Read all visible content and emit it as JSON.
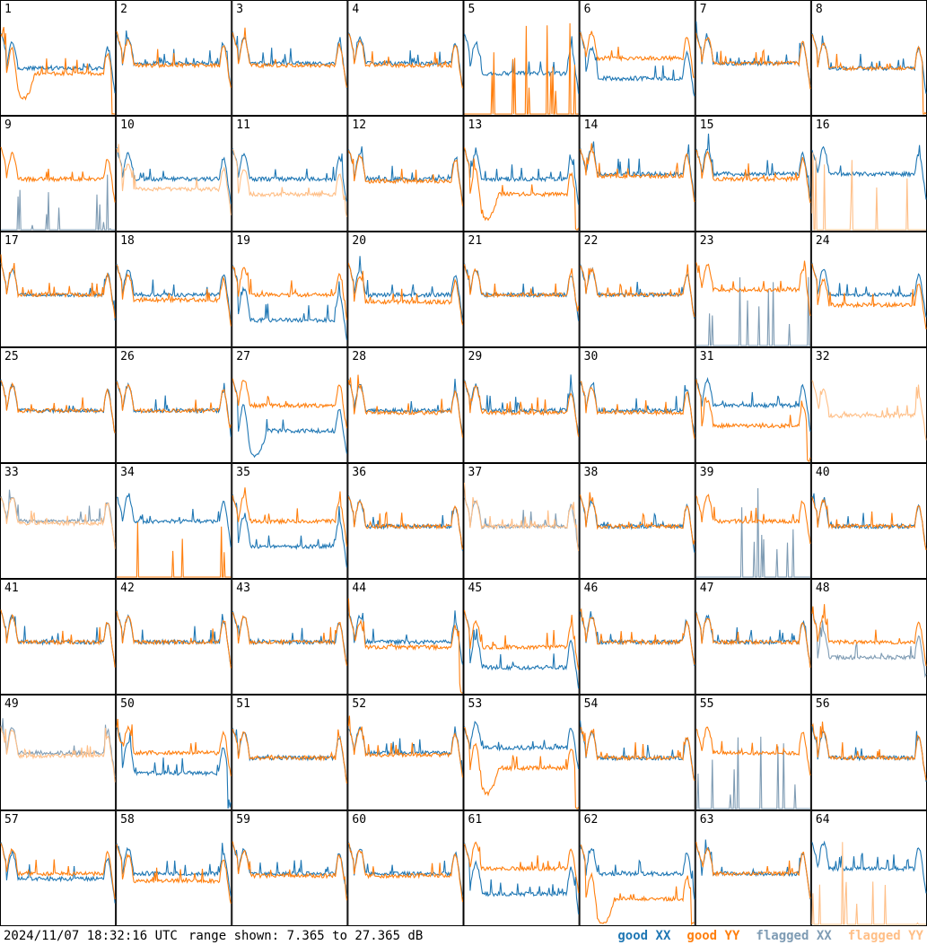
{
  "window": {
    "timestamp": "2024/11/07 18:32:16 UTC",
    "range_label": "range shown: 7.365 to 27.365 dB"
  },
  "legend": [
    {
      "label": "good XX",
      "color": "#1f77b4"
    },
    {
      "label": "good YY",
      "color": "#ff7f0e"
    },
    {
      "label": "flagged XX",
      "color": "#7f9cb4"
    },
    {
      "label": "flagged YY",
      "color": "#ffbf87"
    }
  ],
  "chart_data": {
    "type": "line",
    "grid": {
      "rows": 8,
      "cols": 8
    },
    "ylim": [
      7.365,
      27.365
    ],
    "units": "dB",
    "series_names": [
      "XX",
      "YY"
    ],
    "panels": [
      {
        "label": "1",
        "xx": {
          "shape": "normal",
          "level": 0.55
        },
        "yy": {
          "shape": "dip",
          "level": 0.6,
          "tail": "drop"
        }
      },
      {
        "label": "2",
        "xx": {
          "shape": "normal",
          "level": 0.5
        },
        "yy": {
          "shape": "normal",
          "level": 0.52
        }
      },
      {
        "label": "3",
        "xx": {
          "shape": "normal",
          "level": 0.5
        },
        "yy": {
          "shape": "normal",
          "level": 0.52
        }
      },
      {
        "label": "4",
        "xx": {
          "shape": "normal",
          "level": 0.5
        },
        "yy": {
          "shape": "normal",
          "level": 0.52
        }
      },
      {
        "label": "5",
        "xx": {
          "shape": "low",
          "level": 0.55
        },
        "yy": {
          "shape": "spikes",
          "level": 0.0
        }
      },
      {
        "label": "6",
        "xx": {
          "shape": "low",
          "level": 0.6
        },
        "yy": {
          "shape": "normal",
          "level": 0.45
        }
      },
      {
        "label": "7",
        "xx": {
          "shape": "normal",
          "level": 0.5
        },
        "yy": {
          "shape": "normal",
          "level": 0.5
        }
      },
      {
        "label": "8",
        "xx": {
          "shape": "normal",
          "level": 0.55
        },
        "yy": {
          "shape": "normal",
          "level": 0.55,
          "tail": "drop"
        }
      },
      {
        "label": "9",
        "xx": {
          "shape": "flag-spikes",
          "level": 0.0
        },
        "yy": {
          "shape": "normal",
          "level": 0.5
        }
      },
      {
        "label": "10",
        "xx": {
          "shape": "normal",
          "level": 0.5
        },
        "yy": {
          "shape": "flag-low",
          "level": 0.6
        }
      },
      {
        "label": "11",
        "xx": {
          "shape": "normal",
          "level": 0.5
        },
        "yy": {
          "shape": "flag-low",
          "level": 0.65
        }
      },
      {
        "label": "12",
        "xx": {
          "shape": "normal",
          "level": 0.5
        },
        "yy": {
          "shape": "normal",
          "level": 0.52
        }
      },
      {
        "label": "13",
        "xx": {
          "shape": "normal",
          "level": 0.5
        },
        "yy": {
          "shape": "dip",
          "level": 0.65,
          "tail": "drop"
        }
      },
      {
        "label": "14",
        "xx": {
          "shape": "normal",
          "level": 0.45
        },
        "yy": {
          "shape": "normal",
          "level": 0.47
        }
      },
      {
        "label": "15",
        "xx": {
          "shape": "normal",
          "level": 0.45
        },
        "yy": {
          "shape": "normal",
          "level": 0.5
        }
      },
      {
        "label": "16",
        "xx": {
          "shape": "normal",
          "level": 0.45
        },
        "yy": {
          "shape": "flag-spikes",
          "level": 0.0
        }
      },
      {
        "label": "17",
        "xx": {
          "shape": "normal",
          "level": 0.5
        },
        "yy": {
          "shape": "normal",
          "level": 0.5
        }
      },
      {
        "label": "18",
        "xx": {
          "shape": "normal",
          "level": 0.5
        },
        "yy": {
          "shape": "normal",
          "level": 0.55
        }
      },
      {
        "label": "19",
        "xx": {
          "shape": "low",
          "level": 0.7
        },
        "yy": {
          "shape": "normal",
          "level": 0.5
        }
      },
      {
        "label": "20",
        "xx": {
          "shape": "normal",
          "level": 0.5
        },
        "yy": {
          "shape": "normal",
          "level": 0.57
        }
      },
      {
        "label": "21",
        "xx": {
          "shape": "normal",
          "level": 0.5
        },
        "yy": {
          "shape": "normal",
          "level": 0.5
        }
      },
      {
        "label": "22",
        "xx": {
          "shape": "normal",
          "level": 0.5
        },
        "yy": {
          "shape": "normal",
          "level": 0.5
        }
      },
      {
        "label": "23",
        "xx": {
          "shape": "flag-spikes",
          "level": 0.0
        },
        "yy": {
          "shape": "normal",
          "level": 0.45
        }
      },
      {
        "label": "24",
        "xx": {
          "shape": "normal",
          "level": 0.5
        },
        "yy": {
          "shape": "normal",
          "level": 0.6
        }
      },
      {
        "label": "25",
        "xx": {
          "shape": "normal",
          "level": 0.5
        },
        "yy": {
          "shape": "normal",
          "level": 0.5
        }
      },
      {
        "label": "26",
        "xx": {
          "shape": "normal",
          "level": 0.5
        },
        "yy": {
          "shape": "normal",
          "level": 0.5
        }
      },
      {
        "label": "27",
        "xx": {
          "shape": "dip",
          "level": 0.7
        },
        "yy": {
          "shape": "normal",
          "level": 0.45
        }
      },
      {
        "label": "28",
        "xx": {
          "shape": "normal",
          "level": 0.5
        },
        "yy": {
          "shape": "normal",
          "level": 0.52
        }
      },
      {
        "label": "29",
        "xx": {
          "shape": "normal",
          "level": 0.5
        },
        "yy": {
          "shape": "normal",
          "level": 0.52
        }
      },
      {
        "label": "30",
        "xx": {
          "shape": "normal",
          "level": 0.5
        },
        "yy": {
          "shape": "normal",
          "level": 0.52
        }
      },
      {
        "label": "31",
        "xx": {
          "shape": "normal",
          "level": 0.45
        },
        "yy": {
          "shape": "normal",
          "level": 0.65,
          "tail": "drop"
        }
      },
      {
        "label": "32",
        "xx": {
          "shape": "none",
          "level": 0.0
        },
        "yy": {
          "shape": "flag-low",
          "level": 0.55
        }
      },
      {
        "label": "33",
        "xx": {
          "shape": "flag-normal",
          "level": 0.45
        },
        "yy": {
          "shape": "flag-normal",
          "level": 0.47
        }
      },
      {
        "label": "34",
        "xx": {
          "shape": "normal",
          "level": 0.45
        },
        "yy": {
          "shape": "spikes",
          "level": 0.0
        }
      },
      {
        "label": "35",
        "xx": {
          "shape": "low",
          "level": 0.65
        },
        "yy": {
          "shape": "normal",
          "level": 0.45
        }
      },
      {
        "label": "36",
        "xx": {
          "shape": "normal",
          "level": 0.5
        },
        "yy": {
          "shape": "normal",
          "level": 0.5
        }
      },
      {
        "label": "37",
        "xx": {
          "shape": "flag-normal",
          "level": 0.5
        },
        "yy": {
          "shape": "flag-normal",
          "level": 0.5
        }
      },
      {
        "label": "38",
        "xx": {
          "shape": "normal",
          "level": 0.5
        },
        "yy": {
          "shape": "normal",
          "level": 0.5
        }
      },
      {
        "label": "39",
        "xx": {
          "shape": "flag-spikes",
          "level": 0.0
        },
        "yy": {
          "shape": "normal",
          "level": 0.45
        }
      },
      {
        "label": "40",
        "xx": {
          "shape": "normal",
          "level": 0.5
        },
        "yy": {
          "shape": "normal",
          "level": 0.5
        }
      },
      {
        "label": "41",
        "xx": {
          "shape": "normal",
          "level": 0.5
        },
        "yy": {
          "shape": "normal",
          "level": 0.5
        }
      },
      {
        "label": "42",
        "xx": {
          "shape": "normal",
          "level": 0.5
        },
        "yy": {
          "shape": "normal",
          "level": 0.5
        }
      },
      {
        "label": "43",
        "xx": {
          "shape": "normal",
          "level": 0.5
        },
        "yy": {
          "shape": "normal",
          "level": 0.5
        }
      },
      {
        "label": "44",
        "xx": {
          "shape": "normal",
          "level": 0.5
        },
        "yy": {
          "shape": "normal",
          "level": 0.55,
          "tail": "drop"
        }
      },
      {
        "label": "45",
        "xx": {
          "shape": "low",
          "level": 0.7
        },
        "yy": {
          "shape": "normal",
          "level": 0.55
        }
      },
      {
        "label": "46",
        "xx": {
          "shape": "normal",
          "level": 0.5
        },
        "yy": {
          "shape": "normal",
          "level": 0.5
        }
      },
      {
        "label": "47",
        "xx": {
          "shape": "normal",
          "level": 0.5
        },
        "yy": {
          "shape": "normal",
          "level": 0.5
        }
      },
      {
        "label": "48",
        "xx": {
          "shape": "flag-low",
          "level": 0.65
        },
        "yy": {
          "shape": "normal",
          "level": 0.5
        }
      },
      {
        "label": "49",
        "xx": {
          "shape": "flag-normal",
          "level": 0.45
        },
        "yy": {
          "shape": "flag-normal",
          "level": 0.48
        }
      },
      {
        "label": "50",
        "xx": {
          "shape": "low",
          "level": 0.6,
          "tail": "drop"
        },
        "yy": {
          "shape": "normal",
          "level": 0.45
        }
      },
      {
        "label": "51",
        "xx": {
          "shape": "normal",
          "level": 0.5
        },
        "yy": {
          "shape": "normal",
          "level": 0.5
        }
      },
      {
        "label": "52",
        "xx": {
          "shape": "normal",
          "level": 0.45
        },
        "yy": {
          "shape": "normal",
          "level": 0.47
        }
      },
      {
        "label": "53",
        "xx": {
          "shape": "normal",
          "level": 0.4
        },
        "yy": {
          "shape": "dip",
          "level": 0.6,
          "tail": "drop"
        }
      },
      {
        "label": "54",
        "xx": {
          "shape": "normal",
          "level": 0.5
        },
        "yy": {
          "shape": "normal",
          "level": 0.5
        }
      },
      {
        "label": "55",
        "xx": {
          "shape": "flag-spikes",
          "level": 0.0
        },
        "yy": {
          "shape": "normal",
          "level": 0.45
        }
      },
      {
        "label": "56",
        "xx": {
          "shape": "normal",
          "level": 0.5
        },
        "yy": {
          "shape": "normal",
          "level": 0.5
        }
      },
      {
        "label": "57",
        "xx": {
          "shape": "normal",
          "level": 0.55
        },
        "yy": {
          "shape": "normal",
          "level": 0.5
        }
      },
      {
        "label": "58",
        "xx": {
          "shape": "normal",
          "level": 0.5
        },
        "yy": {
          "shape": "normal",
          "level": 0.57
        }
      },
      {
        "label": "59",
        "xx": {
          "shape": "normal",
          "level": 0.5
        },
        "yy": {
          "shape": "normal",
          "level": 0.52
        }
      },
      {
        "label": "60",
        "xx": {
          "shape": "normal",
          "level": 0.5
        },
        "yy": {
          "shape": "normal",
          "level": 0.52
        }
      },
      {
        "label": "61",
        "xx": {
          "shape": "low",
          "level": 0.65
        },
        "yy": {
          "shape": "normal",
          "level": 0.45
        }
      },
      {
        "label": "62",
        "xx": {
          "shape": "normal",
          "level": 0.5
        },
        "yy": {
          "shape": "dip",
          "level": 0.75,
          "tail": "drop"
        }
      },
      {
        "label": "63",
        "xx": {
          "shape": "normal",
          "level": 0.5
        },
        "yy": {
          "shape": "normal",
          "level": 0.5
        }
      },
      {
        "label": "64",
        "xx": {
          "shape": "normal",
          "level": 0.45
        },
        "yy": {
          "shape": "flag-spikes",
          "level": 0.0
        }
      }
    ]
  }
}
